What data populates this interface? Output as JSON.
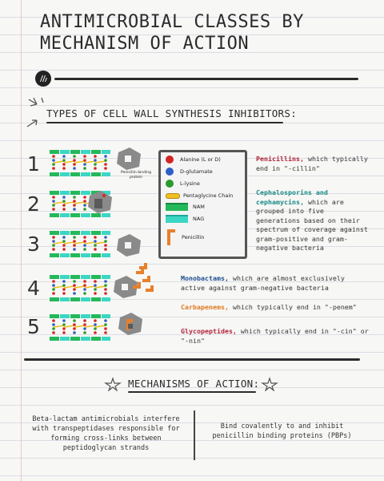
{
  "title": {
    "line1": "ANTIMICROBIAL CLASSES BY",
    "line2": "MECHANISM OF ACTION"
  },
  "section1": {
    "heading": "TYPES OF CELL WALL SYNTHESIS INHIBITORS:"
  },
  "numbers": [
    "1",
    "2",
    "3",
    "4",
    "5"
  ],
  "pbp_label": "Penicillin binding protein",
  "legend": {
    "items": [
      {
        "label": "Alanine (L or D)",
        "color": "#d42424",
        "shape": "circle"
      },
      {
        "label": "D-glutamate",
        "color": "#2e5fc6",
        "shape": "circle"
      },
      {
        "label": "L-lysine",
        "color": "#2a9a2e",
        "shape": "circle"
      },
      {
        "label": "Pentaglycine Chain",
        "color": "#f0c020",
        "shape": "pill"
      },
      {
        "label": "NAM",
        "color": "#24b85a",
        "shape": "bar"
      },
      {
        "label": "NAG",
        "color": "#3cd6c4",
        "shape": "bar"
      },
      {
        "label": "Penicillin",
        "color": "#e8802a",
        "shape": "penicillin"
      }
    ]
  },
  "descriptions": {
    "d1_kw": "Penicillins,",
    "d1_rest": " which typically end in \"-cillin\"",
    "d2_kw": "Cephalosporins and cephamycins,",
    "d2_rest": " which are grouped into five generations based on their spectrum of coverage against gram-positive and gram-negative bacteria",
    "d3_kw": "Monobactams,",
    "d3_rest": " which are almost exclusively active against gram-negative bacteria",
    "d4_kw": "Carbapenems,",
    "d4_rest": " which typically end in \"-penem\"",
    "d5_kw": "Glycopeptides,",
    "d5_rest": " which typically end in \"-cin\" or \"-nin\""
  },
  "section2": {
    "heading": "MECHANISMS OF ACTION:"
  },
  "mechanisms": {
    "left": "Beta-lactam antimicrobials interfere with transpeptidases responsible for forming cross-links between peptidoglycan strands",
    "right": "Bind covalently to and inhibit penicillin binding proteins (PBPs)"
  },
  "colors": {
    "nam": "#24b85a",
    "nag": "#3cd6c4",
    "penicillin": "#e8802a",
    "pbp": "#8a8a8a"
  }
}
